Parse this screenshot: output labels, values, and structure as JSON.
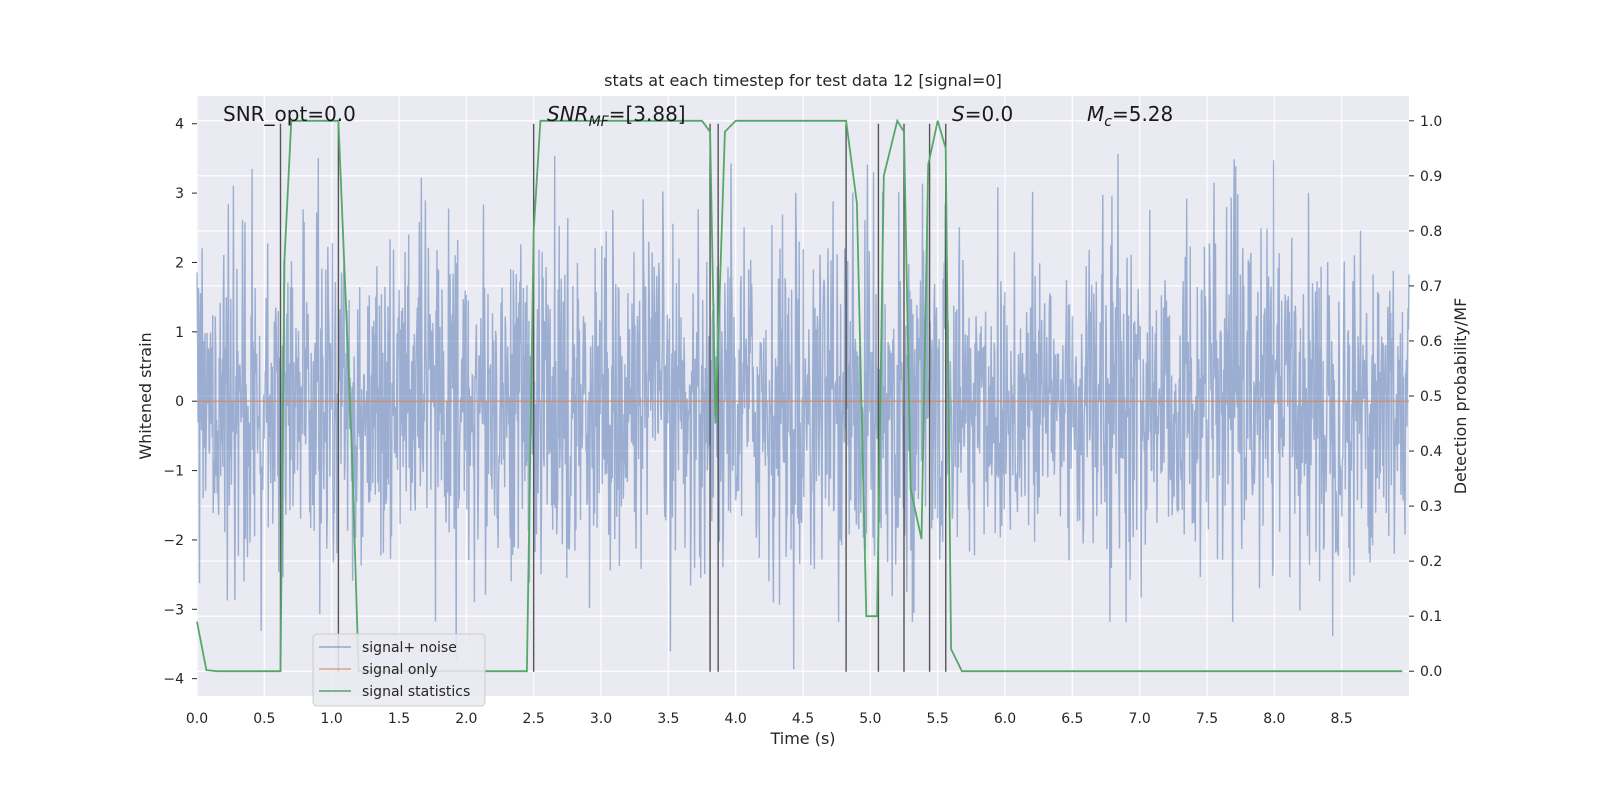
{
  "chart_data": {
    "type": "line",
    "title": "stats at each timestep for test data 12 [signal=0]",
    "xlabel": "Time (s)",
    "ylabel": "Whitened strain",
    "y2label": "Detection probability/MF",
    "xlim": [
      0.0,
      9.0
    ],
    "ylim": [
      -4.25,
      4.4
    ],
    "y2lim": [
      -0.045,
      1.045
    ],
    "x_ticks": [
      "0.0",
      "0.5",
      "1.0",
      "1.5",
      "2.0",
      "2.5",
      "3.0",
      "3.5",
      "4.0",
      "4.5",
      "5.0",
      "5.5",
      "6.0",
      "6.5",
      "7.0",
      "7.5",
      "8.0",
      "8.5"
    ],
    "y_ticks": [
      "4",
      "3",
      "2",
      "1",
      "0",
      "−1",
      "−2",
      "−3",
      "−4"
    ],
    "y2_ticks": [
      "1.0",
      "0.9",
      "0.8",
      "0.7",
      "0.6",
      "0.5",
      "0.4",
      "0.3",
      "0.2",
      "0.1",
      "0.0"
    ],
    "grid": true,
    "legend_position": "lower-left",
    "annotations": {
      "snr_opt": "SNR_opt=0.0",
      "snr_mf_prefix": "SNR",
      "snr_mf_sub": "MF",
      "snr_mf_value": "=[3.88]",
      "s_italic": "S",
      "s_value": "=0.0",
      "mc_italic": "M",
      "mc_sub": "c",
      "mc_value": "=5.28"
    },
    "series": [
      {
        "name": "signal+ noise",
        "axis": "left",
        "color": "#4c72b0",
        "noise_amplitude_typical": 1.2,
        "noise_peak_range": [
          -3.9,
          3.6
        ]
      },
      {
        "name": "signal only",
        "axis": "left",
        "color": "#dd8452",
        "values": "constant 0"
      },
      {
        "name": "signal statistics",
        "axis": "right",
        "color": "#55a868",
        "x": [
          0.0,
          0.07,
          0.15,
          0.62,
          0.65,
          0.7,
          1.05,
          1.15,
          1.2,
          2.45,
          2.5,
          2.55,
          3.75,
          3.81,
          3.85,
          3.92,
          4.0,
          4.82,
          4.9,
          4.97,
          5.05,
          5.1,
          5.2,
          5.25,
          5.3,
          5.38,
          5.43,
          5.5,
          5.56,
          5.6,
          5.68,
          5.75,
          8.95
        ],
        "y": [
          0.09,
          0.002,
          0.0,
          0.0,
          0.75,
          1.0,
          1.0,
          0.4,
          0.0,
          0.0,
          0.8,
          1.0,
          1.0,
          0.98,
          0.45,
          0.98,
          1.0,
          1.0,
          0.85,
          0.1,
          0.1,
          0.9,
          1.0,
          0.98,
          0.33,
          0.24,
          0.92,
          1.0,
          0.95,
          0.04,
          0.0,
          0.0,
          0.0
        ]
      }
    ],
    "vertical_markers": {
      "color": "#555555",
      "x": [
        0.62,
        1.05,
        2.5,
        3.81,
        3.87,
        4.82,
        5.06,
        5.25,
        5.44,
        5.56
      ],
      "y_range": [
        -3.9,
        4.0
      ]
    }
  }
}
